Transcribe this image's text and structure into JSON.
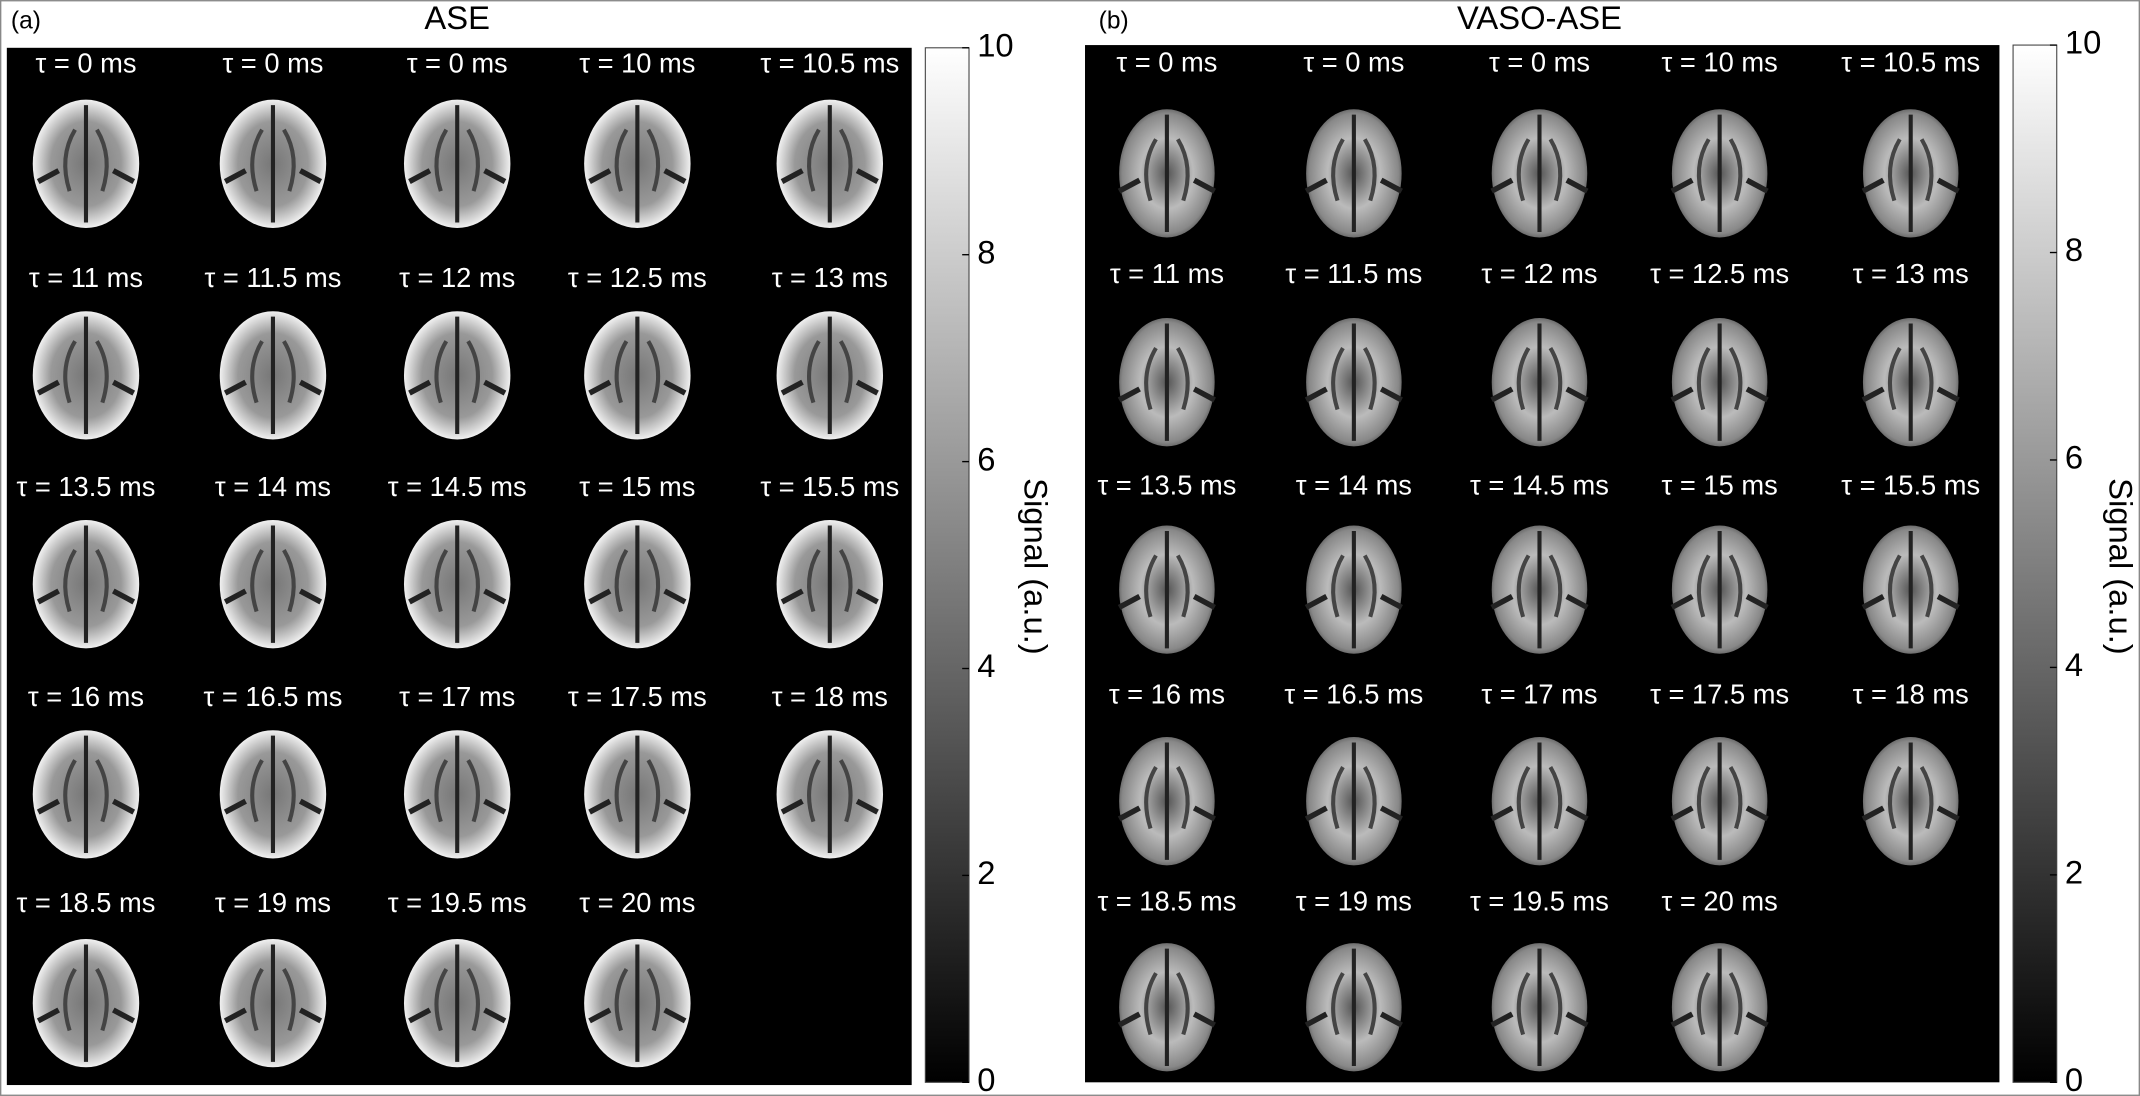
{
  "panels": [
    {
      "label": "(a)",
      "title": "ASE",
      "images": [
        "τ = 0 ms",
        "τ = 0 ms",
        "τ = 0 ms",
        "τ = 10 ms",
        "τ = 10.5 ms",
        "τ = 11 ms",
        "τ = 11.5 ms",
        "τ = 12 ms",
        "τ = 12.5 ms",
        "τ = 13 ms",
        "τ = 13.5 ms",
        "τ = 14 ms",
        "τ = 14.5 ms",
        "τ = 15 ms",
        "τ = 15.5 ms",
        "τ = 16 ms",
        "τ = 16.5 ms",
        "τ = 17 ms",
        "τ = 17.5 ms",
        "τ = 18 ms",
        "τ = 18.5 ms",
        "τ = 19 ms",
        "τ = 19.5 ms",
        "τ = 20 ms"
      ],
      "colorbar": {
        "label": "Signal (a.u.)",
        "lim": [
          0,
          10
        ],
        "ticks": [
          0,
          2,
          4,
          6,
          8,
          10
        ]
      }
    },
    {
      "label": "(b)",
      "title": "VASO-ASE",
      "images": [
        "τ = 0 ms",
        "τ = 0 ms",
        "τ = 0 ms",
        "τ = 10 ms",
        "τ = 10.5 ms",
        "τ = 11 ms",
        "τ = 11.5 ms",
        "τ = 12 ms",
        "τ = 12.5 ms",
        "τ = 13 ms",
        "τ = 13.5 ms",
        "τ = 14 ms",
        "τ = 14.5 ms",
        "τ = 15 ms",
        "τ = 15.5 ms",
        "τ = 16 ms",
        "τ = 16.5 ms",
        "τ = 17 ms",
        "τ = 17.5 ms",
        "τ = 18 ms",
        "τ = 18.5 ms",
        "τ = 19 ms",
        "τ = 19.5 ms",
        "τ = 20 ms"
      ],
      "colorbar": {
        "label": "Signal (a.u.)",
        "lim": [
          0,
          10
        ],
        "ticks": [
          0,
          2,
          4,
          6,
          8,
          10
        ]
      }
    }
  ]
}
